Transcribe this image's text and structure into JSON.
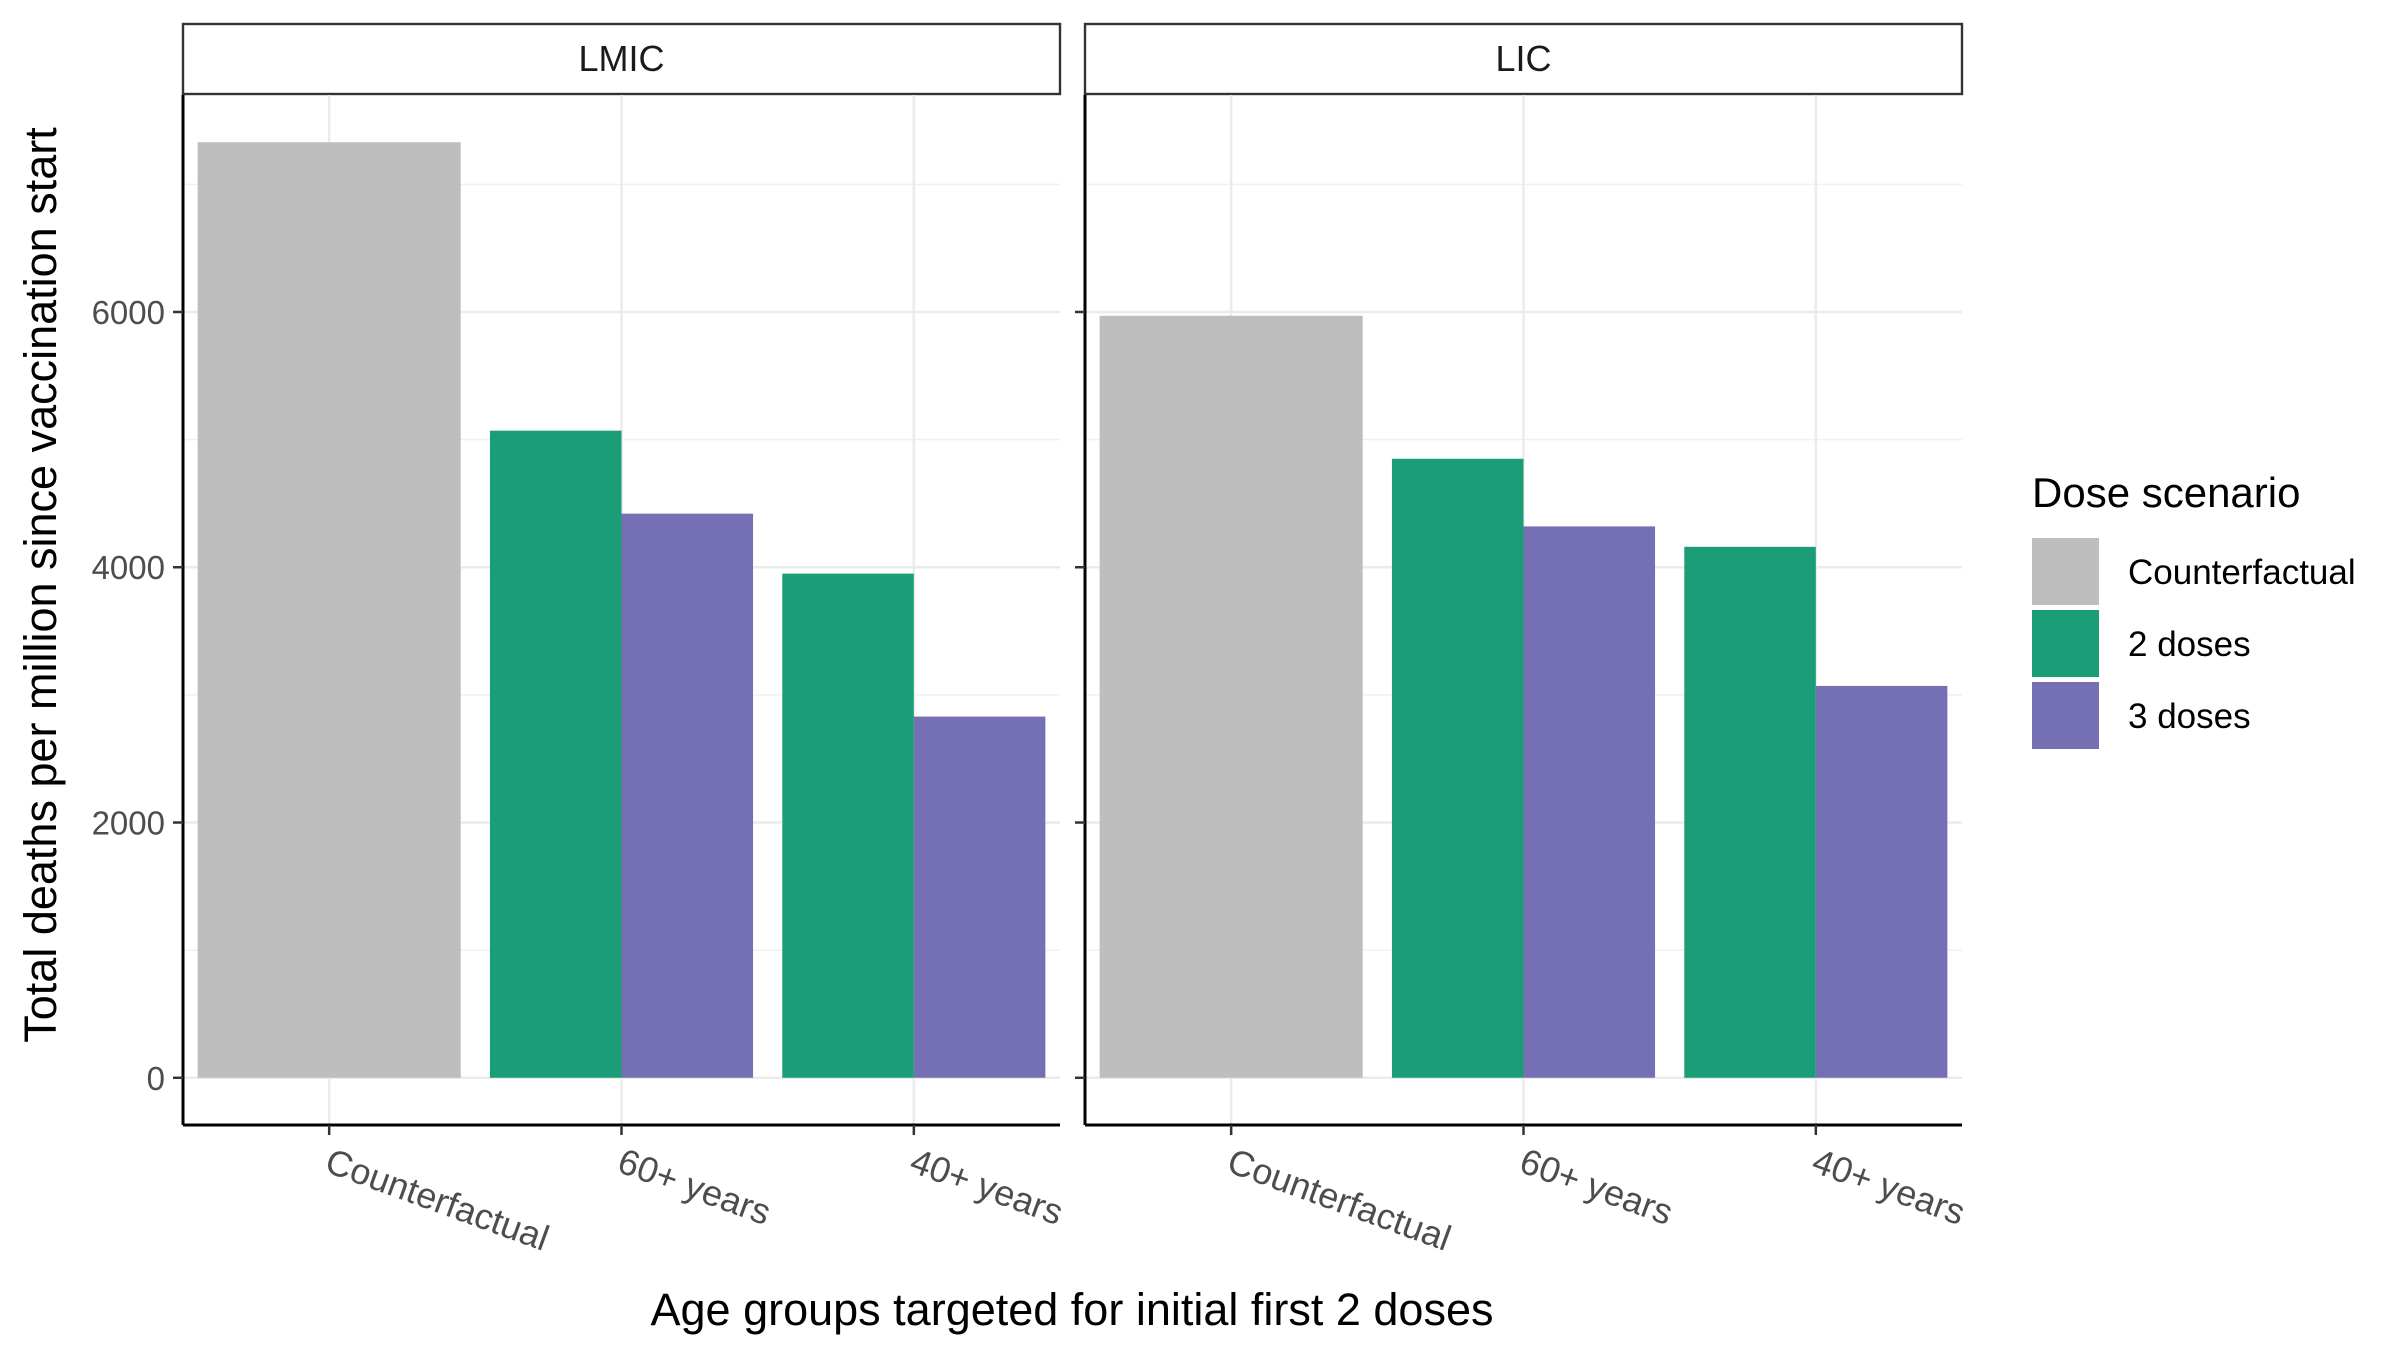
{
  "chart_data": {
    "type": "bar",
    "xlabel": "Age groups targeted for initial first 2 doses",
    "ylabel": "Total deaths per million since vaccination start",
    "ylim": [
      -370,
      7700
    ],
    "yticks": [
      0,
      2000,
      4000,
      6000
    ],
    "grid": true,
    "legend": {
      "title": "Dose scenario",
      "position": "right"
    },
    "categories": [
      "Counterfactual",
      "60+ years",
      "40+ years"
    ],
    "series": [
      {
        "name": "Counterfactual",
        "color": "#bebebe"
      },
      {
        "name": "2 doses",
        "color": "#1b9e77"
      },
      {
        "name": "3 doses",
        "color": "#7570b3"
      }
    ],
    "panels": [
      {
        "title": "LMIC",
        "values": {
          "Counterfactual": [
            7330,
            null,
            null
          ],
          "2 doses": [
            null,
            5070,
            3950
          ],
          "3 doses": [
            null,
            4420,
            2830
          ]
        }
      },
      {
        "title": "LIC",
        "values": {
          "Counterfactual": [
            5970,
            null,
            null
          ],
          "2 doses": [
            null,
            4850,
            4160
          ],
          "3 doses": [
            null,
            4320,
            3070
          ]
        }
      }
    ]
  }
}
